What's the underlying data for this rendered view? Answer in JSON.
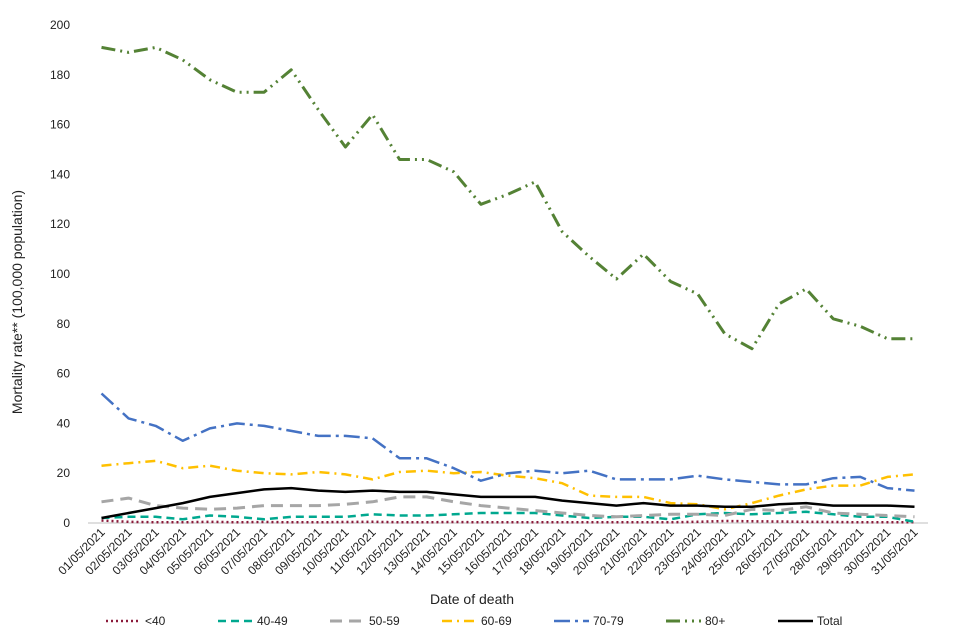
{
  "chart_data": {
    "type": "line",
    "title": "",
    "xlabel": "Date of death",
    "ylabel": "Mortality rate** (100,000 population)",
    "ylim": [
      0,
      200
    ],
    "yticks": [
      0,
      20,
      40,
      60,
      80,
      100,
      120,
      140,
      160,
      180,
      200
    ],
    "grid": false,
    "legend_position": "bottom",
    "categories": [
      "01/05/2021",
      "02/05/2021",
      "03/05/2021",
      "04/05/2021",
      "05/05/2021",
      "06/05/2021",
      "07/05/2021",
      "08/05/2021",
      "09/05/2021",
      "10/05/2021",
      "11/05/2021",
      "12/05/2021",
      "13/05/2021",
      "14/05/2021",
      "15/05/2021",
      "16/05/2021",
      "17/05/2021",
      "18/05/2021",
      "19/05/2021",
      "20/05/2021",
      "21/05/2021",
      "22/05/2021",
      "23/05/2021",
      "24/05/2021",
      "25/05/2021",
      "26/05/2021",
      "27/05/2021",
      "28/05/2021",
      "29/05/2021",
      "30/05/2021",
      "31/05/2021"
    ],
    "series": [
      {
        "name": "<40",
        "color": "#8b1a3a",
        "dash": "2,3",
        "width": 2.5,
        "values": [
          1,
          0.5,
          0.3,
          0.3,
          0.5,
          0.3,
          0.4,
          0.3,
          0.3,
          0.4,
          0.5,
          0.3,
          0.3,
          0.4,
          0.3,
          0.3,
          0.3,
          0.3,
          0.3,
          0.3,
          0.3,
          0.3,
          0.5,
          0.8,
          0.7,
          0.6,
          0.5,
          0.4,
          0.3,
          0.3,
          0.3
        ]
      },
      {
        "name": "40-49",
        "color": "#00a88f",
        "dash": "8,5",
        "width": 2.5,
        "values": [
          2,
          2.5,
          2.5,
          1.5,
          3,
          2.5,
          1.5,
          2.5,
          2.5,
          2.5,
          3.5,
          3,
          3,
          3.5,
          4,
          4,
          4,
          3,
          2,
          2.5,
          2.5,
          1.5,
          3.5,
          4,
          3.5,
          4,
          4.5,
          3.5,
          2.5,
          2.5,
          0.5
        ]
      },
      {
        "name": "50-59",
        "color": "#a6a6a6",
        "dash": "12,7",
        "width": 3,
        "values": [
          8.5,
          10,
          7,
          6,
          5.5,
          6,
          7,
          7,
          7,
          7.5,
          8.5,
          10.5,
          10.5,
          8.5,
          7,
          6,
          5,
          4,
          3,
          2.5,
          3,
          3.5,
          3.5,
          3,
          5.5,
          5,
          6.5,
          4,
          3.5,
          3,
          2.5
        ]
      },
      {
        "name": "60-69",
        "color": "#ffc000",
        "dash": "10,5,2,5",
        "width": 2.5,
        "values": [
          23,
          24,
          25,
          22,
          23,
          21,
          20,
          19.5,
          20.5,
          19.5,
          17.5,
          20.5,
          21,
          20,
          20.5,
          19,
          18,
          16,
          11,
          10.5,
          10.5,
          8,
          7.5,
          5.5,
          8,
          11,
          13.5,
          15,
          15,
          18.5,
          19.5
        ]
      },
      {
        "name": "70-79",
        "color": "#4472c4",
        "dash": "16,5,3,5",
        "width": 2.5,
        "values": [
          52,
          42,
          39,
          33,
          38,
          40,
          39,
          37,
          35,
          35,
          34,
          26,
          26,
          22,
          17,
          20,
          21,
          20,
          21,
          17.5,
          17.5,
          17.5,
          19,
          17.5,
          16.5,
          15.5,
          15.5,
          18,
          18.5,
          14,
          13
        ]
      },
      {
        "name": "80+",
        "color": "#548235",
        "dash": "14,5,2,5,2,5",
        "width": 3,
        "values": [
          191,
          189,
          191,
          186,
          178,
          173,
          173,
          182,
          166,
          151,
          164,
          146,
          146,
          141,
          128,
          132,
          137,
          117,
          107,
          98,
          108,
          97,
          92,
          76,
          70,
          88,
          94,
          82,
          79,
          74,
          74
        ]
      },
      {
        "name": "Total",
        "color": "#000000",
        "dash": "",
        "width": 2.5,
        "values": [
          2,
          4,
          6,
          8,
          10.5,
          12,
          13.5,
          14,
          13,
          12.5,
          13,
          12.5,
          12.5,
          11.5,
          10.5,
          10.5,
          10.5,
          9,
          8,
          7,
          8,
          7,
          7,
          6.5,
          6.5,
          7.5,
          8,
          7,
          7,
          7,
          6.5
        ]
      }
    ]
  }
}
